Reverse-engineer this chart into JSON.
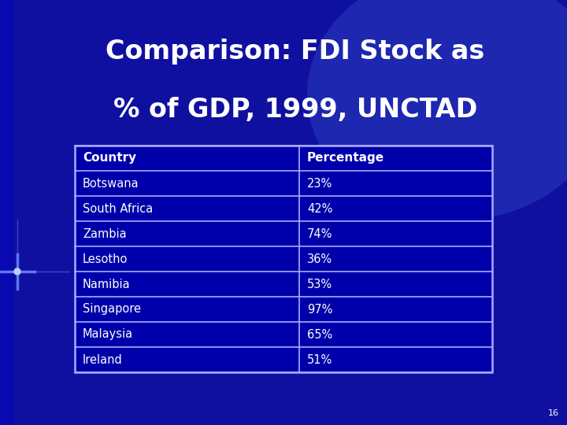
{
  "title_line1": "Comparison: FDI Stock as",
  "title_line2": "% of GDP, 1999, UNCTAD",
  "title_color": "#FFFFFF",
  "title_fontsize": 24,
  "background_color": "#1010a0",
  "table_headers": [
    "Country",
    "Percentage"
  ],
  "table_rows": [
    [
      "Botswana",
      "23%"
    ],
    [
      "South Africa",
      "42%"
    ],
    [
      "Zambia",
      "74%"
    ],
    [
      "Lesotho",
      "36%"
    ],
    [
      "Namibia",
      "53%"
    ],
    [
      "Singapore",
      "97%"
    ],
    [
      "Malaysia",
      "65%"
    ],
    [
      "Ireland",
      "51%"
    ]
  ],
  "table_text_color": "#FFFFFF",
  "table_header_fontsize": 11,
  "table_row_fontsize": 10.5,
  "table_border_color": "#AAAAFF",
  "table_bg_color": "#0000AA",
  "page_number": "16",
  "page_num_color": "#FFFFFF",
  "page_num_fontsize": 8,
  "cross_color": "#6688ff",
  "glow_color": "#2244cc"
}
